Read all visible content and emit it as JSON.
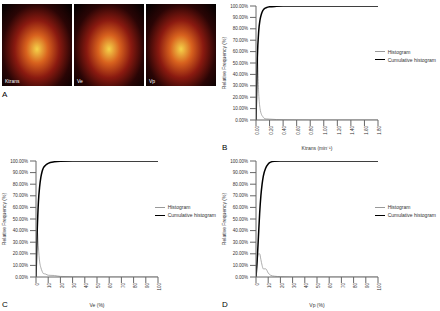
{
  "image": {
    "label": "A",
    "maps": [
      "Ktrans",
      "Ve",
      "Vp"
    ]
  },
  "chart_data": [
    {
      "type": "line",
      "label": "B",
      "x_label": "Ktrans (min⁻¹)",
      "y_label": "Relative Frequency (%)",
      "x": [
        0,
        0.02,
        0.04,
        0.06,
        0.08,
        0.1,
        0.12,
        0.15,
        0.2,
        0.3,
        0.4,
        0.6,
        0.8,
        1.0,
        1.2,
        1.4,
        1.6,
        1.8
      ],
      "series": [
        {
          "name": "Histogram",
          "color": "#999999",
          "values": [
            0,
            55,
            23,
            10,
            5,
            3,
            1.5,
            1,
            0.8,
            0.4,
            0.2,
            0.1,
            0,
            0,
            0,
            0,
            0,
            0
          ]
        },
        {
          "name": "Cumulative histogram",
          "color": "#000000",
          "values": [
            0,
            55,
            78,
            88,
            93,
            96,
            97.5,
            98.5,
            99.3,
            99.7,
            99.9,
            100,
            100,
            100,
            100,
            100,
            100,
            100
          ]
        }
      ],
      "xlim": [
        0,
        1.8
      ],
      "xticks": [
        {
          "value": 0,
          "label": "0.00"
        },
        {
          "value": 0.2,
          "label": "0.20"
        },
        {
          "value": 0.4,
          "label": "0.40"
        },
        {
          "value": 0.6,
          "label": "0.60"
        },
        {
          "value": 0.8,
          "label": "0.80"
        },
        {
          "value": 1.0,
          "label": "1.00"
        },
        {
          "value": 1.2,
          "label": "1.20"
        },
        {
          "value": 1.4,
          "label": "1.40"
        },
        {
          "value": 1.6,
          "label": "1.60"
        },
        {
          "value": 1.8,
          "label": "1.80"
        }
      ],
      "ylim": [
        0,
        100
      ],
      "yticks": [
        {
          "value": 0,
          "label": "0.00%"
        },
        {
          "value": 10,
          "label": "10.00%"
        },
        {
          "value": 20,
          "label": "20.00%"
        },
        {
          "value": 30,
          "label": "30.00%"
        },
        {
          "value": 40,
          "label": "40.00%"
        },
        {
          "value": 50,
          "label": "50.00%"
        },
        {
          "value": 60,
          "label": "60.00%"
        },
        {
          "value": 70,
          "label": "70.00%"
        },
        {
          "value": 80,
          "label": "80.00%"
        },
        {
          "value": 90,
          "label": "90.00%"
        },
        {
          "value": 100,
          "label": "100.00%"
        }
      ],
      "grid": false,
      "legend": "right"
    },
    {
      "type": "line",
      "label": "C",
      "x_label": "Ve (%)",
      "y_label": "Relative Frequency (%)",
      "x": [
        0,
        1,
        2,
        3,
        4,
        5,
        6,
        8,
        10,
        15,
        20,
        30,
        40,
        60,
        80,
        100
      ],
      "series": [
        {
          "name": "Histogram",
          "color": "#999999",
          "values": [
            0,
            40,
            25,
            13,
            8,
            5,
            3,
            2.5,
            1.5,
            1.3,
            0.5,
            0.2,
            0,
            0,
            0,
            0
          ]
        },
        {
          "name": "Cumulative histogram",
          "color": "#000000",
          "values": [
            0,
            40,
            65,
            78,
            86,
            91,
            94,
            96.5,
            98,
            99.3,
            99.8,
            100,
            100,
            100,
            100,
            100
          ]
        }
      ],
      "xlim": [
        0,
        100
      ],
      "xticks": [
        0,
        10,
        20,
        30,
        40,
        50,
        60,
        70,
        80,
        90,
        100
      ],
      "ylim": [
        0,
        100
      ],
      "yticks": [
        {
          "value": 0,
          "label": "0.00%"
        },
        {
          "value": 10,
          "label": "10.00%"
        },
        {
          "value": 20,
          "label": "20.00%"
        },
        {
          "value": 30,
          "label": "30.00%"
        },
        {
          "value": 40,
          "label": "40.00%"
        },
        {
          "value": 50,
          "label": "50.00%"
        },
        {
          "value": 60,
          "label": "60.00%"
        },
        {
          "value": 70,
          "label": "70.00%"
        },
        {
          "value": 80,
          "label": "80.00%"
        },
        {
          "value": 90,
          "label": "90.00%"
        },
        {
          "value": 100,
          "label": "100.00%"
        }
      ],
      "grid": false,
      "legend": "right"
    },
    {
      "type": "line",
      "label": "D",
      "x_label": "Vp (%)",
      "y_label": "Relative Frequency (%)",
      "x": [
        0,
        1,
        2,
        3,
        4,
        5,
        6,
        8,
        10,
        12,
        15,
        20,
        30,
        50,
        100
      ],
      "series": [
        {
          "name": "Histogram",
          "color": "#999999",
          "values": [
            0,
            15,
            20,
            20,
            15,
            10,
            7,
            7,
            3.5,
            1.5,
            0.7,
            0.3,
            0,
            0,
            0
          ]
        },
        {
          "name": "Cumulative histogram",
          "color": "#000000",
          "values": [
            0,
            15,
            35,
            55,
            70,
            80,
            87,
            94,
            97.5,
            99,
            99.7,
            100,
            100,
            100,
            100
          ]
        }
      ],
      "xlim": [
        0,
        100
      ],
      "xticks": [
        0,
        10,
        20,
        30,
        40,
        50,
        60,
        70,
        80,
        90,
        100
      ],
      "ylim": [
        0,
        100
      ],
      "yticks": [
        {
          "value": 0,
          "label": "0.00%"
        },
        {
          "value": 10,
          "label": "10.00%"
        },
        {
          "value": 20,
          "label": "20.00%"
        },
        {
          "value": 30,
          "label": "30.00%"
        },
        {
          "value": 40,
          "label": "40.00%"
        },
        {
          "value": 50,
          "label": "50.00%"
        },
        {
          "value": 60,
          "label": "60.00%"
        },
        {
          "value": 70,
          "label": "70.00%"
        },
        {
          "value": 80,
          "label": "80.00%"
        },
        {
          "value": 90,
          "label": "90.00%"
        },
        {
          "value": 100,
          "label": "100.00%"
        }
      ],
      "grid": false,
      "legend": "right"
    }
  ]
}
